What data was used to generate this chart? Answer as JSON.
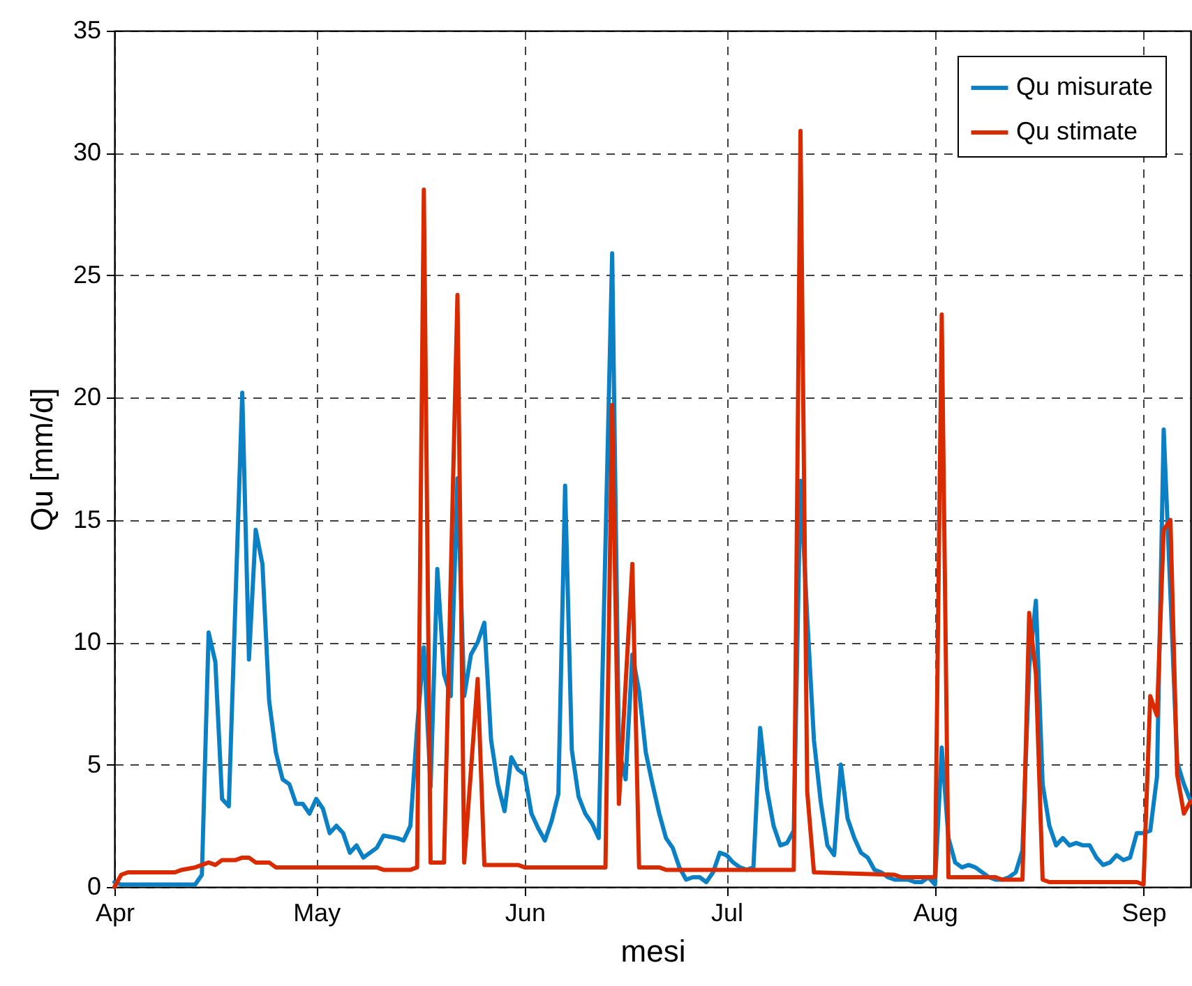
{
  "chart_data": {
    "type": "line",
    "xlabel": "mesi",
    "ylabel": "Qu [mm/d]",
    "xlim": [
      "--04-01",
      "--09-08"
    ],
    "xticks": [
      {
        "value": "--04-01",
        "label": "Apr"
      },
      {
        "value": "--05-01",
        "label": "May"
      },
      {
        "value": "--06-01",
        "label": "Jun"
      },
      {
        "value": "--07-01",
        "label": "Jul"
      },
      {
        "value": "--08-01",
        "label": "Aug"
      },
      {
        "value": "--09-01",
        "label": "Sep"
      }
    ],
    "ylim": [
      0,
      35
    ],
    "yticks": [
      0,
      5,
      10,
      15,
      20,
      25,
      30,
      35
    ],
    "grid": true,
    "legend": "top right",
    "line_style": "solid",
    "series": [
      {
        "name": "Qu misurate",
        "color": "#0b80c4",
        "x": [
          "--04-01",
          "--04-02",
          "--04-13",
          "--04-14",
          "--04-15",
          "--04-16",
          "--04-17",
          "--04-18",
          "--04-20",
          "--04-21",
          "--04-22",
          "--04-23",
          "--04-24",
          "--04-25",
          "--04-26",
          "--04-27",
          "--04-28",
          "--04-29",
          "--04-30",
          "--05-01",
          "--05-02",
          "--05-03",
          "--05-04",
          "--05-05",
          "--05-06",
          "--05-07",
          "--05-08",
          "--05-09",
          "--05-10",
          "--05-11",
          "--05-13",
          "--05-14",
          "--05-15",
          "--05-16",
          "--05-17",
          "--05-18",
          "--05-19",
          "--05-20",
          "--05-21",
          "--05-22",
          "--05-23",
          "--05-24",
          "--05-25",
          "--05-26",
          "--05-27",
          "--05-28",
          "--05-29",
          "--05-30",
          "--05-31",
          "--06-01",
          "--06-02",
          "--06-03",
          "--06-04",
          "--06-05",
          "--06-06",
          "--06-07",
          "--06-08",
          "--06-09",
          "--06-10",
          "--06-11",
          "--06-12",
          "--06-14",
          "--06-15",
          "--06-16",
          "--06-17",
          "--06-18",
          "--06-19",
          "--06-20",
          "--06-21",
          "--06-22",
          "--06-23",
          "--06-24",
          "--06-25",
          "--06-26",
          "--06-27",
          "--06-28",
          "--06-29",
          "--06-30",
          "--07-01",
          "--07-02",
          "--07-03",
          "--07-04",
          "--07-05",
          "--07-06",
          "--07-07",
          "--07-08",
          "--07-09",
          "--07-10",
          "--07-11",
          "--07-12",
          "--07-13",
          "--07-14",
          "--07-15",
          "--07-16",
          "--07-17",
          "--07-18",
          "--07-19",
          "--07-20",
          "--07-21",
          "--07-22",
          "--07-23",
          "--07-24",
          "--07-25",
          "--07-26",
          "--07-27",
          "--07-28",
          "--07-29",
          "--07-30",
          "--07-31",
          "--08-01",
          "--08-02",
          "--08-03",
          "--08-04",
          "--08-05",
          "--08-06",
          "--08-07",
          "--08-08",
          "--08-09",
          "--08-10",
          "--08-11",
          "--08-12",
          "--08-13",
          "--08-14",
          "--08-15",
          "--08-16",
          "--08-17",
          "--08-18",
          "--08-19",
          "--08-20",
          "--08-21",
          "--08-22",
          "--08-23",
          "--08-24",
          "--08-25",
          "--08-26",
          "--08-27",
          "--08-28",
          "--08-29",
          "--08-30",
          "--08-31",
          "--09-01",
          "--09-02",
          "--09-03",
          "--09-04",
          "--09-05",
          "--09-06",
          "--09-07",
          "--09-08"
        ],
        "values": [
          0.2,
          0.1,
          0.1,
          0.5,
          10.4,
          9.2,
          3.6,
          3.3,
          20.2,
          9.3,
          14.6,
          13.2,
          7.6,
          5.5,
          4.4,
          4.2,
          3.4,
          3.4,
          3.0,
          3.6,
          3.2,
          2.2,
          2.5,
          2.2,
          1.4,
          1.7,
          1.2,
          1.4,
          1.6,
          2.1,
          2.0,
          1.9,
          2.5,
          6.5,
          9.8,
          4.1,
          13,
          8.7,
          7.8,
          16.7,
          7.8,
          9.5,
          10,
          10.8,
          6,
          4.2,
          3.1,
          5.3,
          4.8,
          4.6,
          3.0,
          2.4,
          1.9,
          2.7,
          3.8,
          16.4,
          5.6,
          3.7,
          3.0,
          2.6,
          2.0,
          25.9,
          5.6,
          4.4,
          9.5,
          8,
          5.5,
          4.2,
          3,
          2,
          1.6,
          0.8,
          0.3,
          0.4,
          0.4,
          0.2,
          0.6,
          1.4,
          1.3,
          1.0,
          0.8,
          0.7,
          0.8,
          6.5,
          4.0,
          2.5,
          1.7,
          1.8,
          2.3,
          16.6,
          11,
          6,
          3.5,
          1.7,
          1.3,
          5.0,
          2.8,
          2.0,
          1.4,
          1.2,
          0.7,
          0.6,
          0.4,
          0.3,
          0.3,
          0.3,
          0.2,
          0.2,
          0.4,
          0.1,
          5.7,
          2.0,
          1.0,
          0.8,
          0.9,
          0.8,
          0.6,
          0.4,
          0.3,
          0.3,
          0.4,
          0.6,
          1.5,
          9,
          11.7,
          4.2,
          2.5,
          1.7,
          2.0,
          1.7,
          1.8,
          1.7,
          1.7,
          1.2,
          0.9,
          1.0,
          1.3,
          1.1,
          1.2,
          2.2,
          2.2,
          2.3,
          4.5,
          18.7,
          12,
          5.1,
          4.2,
          3.5
        ]
      },
      {
        "name": "Qu stimate",
        "color": "#d92b02",
        "x": [
          "--04-01",
          "--04-02",
          "--04-03",
          "--04-10",
          "--04-11",
          "--04-13",
          "--04-14",
          "--04-15",
          "--04-16",
          "--04-17",
          "--04-19",
          "--04-20",
          "--04-21",
          "--04-22",
          "--04-24",
          "--04-25",
          "--05-10",
          "--05-11",
          "--05-15",
          "--05-16",
          "--05-17",
          "--05-18",
          "--05-20",
          "--05-22",
          "--05-23",
          "--05-25",
          "--05-26",
          "--05-31",
          "--06-01",
          "--06-13",
          "--06-14",
          "--06-15",
          "--06-17",
          "--06-18",
          "--06-21",
          "--06-22",
          "--07-11",
          "--07-12",
          "--07-13",
          "--07-14",
          "--07-26",
          "--07-27",
          "--08-01",
          "--08-02",
          "--08-03",
          "--08-10",
          "--08-11",
          "--08-14",
          "--08-15",
          "--08-16",
          "--08-17",
          "--08-18",
          "--08-31",
          "--09-01",
          "--09-02",
          "--09-03",
          "--09-04",
          "--09-05",
          "--09-06",
          "--09-07",
          "--09-08"
        ],
        "values": [
          0,
          0.5,
          0.6,
          0.6,
          0.7,
          0.8,
          0.9,
          1.0,
          0.9,
          1.1,
          1.1,
          1.2,
          1.2,
          1.0,
          1.0,
          0.8,
          0.8,
          0.7,
          0.7,
          0.8,
          28.5,
          1.0,
          1.0,
          24.2,
          1.0,
          8.5,
          0.9,
          0.9,
          0.8,
          0.8,
          19.7,
          3.4,
          13.2,
          0.8,
          0.8,
          0.7,
          0.7,
          30.9,
          3.9,
          0.6,
          0.5,
          0.4,
          0.4,
          23.4,
          0.4,
          0.4,
          0.3,
          0.3,
          11.2,
          8.7,
          0.3,
          0.2,
          0.2,
          0.1,
          7.8,
          7.0,
          14.6,
          15.0,
          4.6,
          3.0,
          3.5
        ]
      }
    ]
  }
}
